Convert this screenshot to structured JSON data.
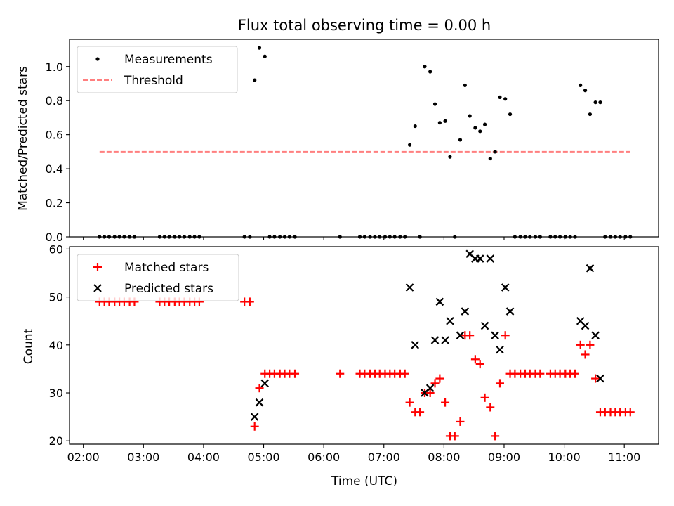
{
  "figure": {
    "title": "Flux total observing time = 0.00 h"
  },
  "chart_data": [
    {
      "type": "scatter",
      "xlabel": "",
      "ylabel": "Matched/Predicted stars",
      "xlim": [
        1.77,
        11.57
      ],
      "ylim": [
        0.0,
        1.16
      ],
      "yticks": [
        0.0,
        0.2,
        0.4,
        0.6,
        0.8,
        1.0
      ],
      "yticklabels": [
        "0.0",
        "0.2",
        "0.4",
        "0.6",
        "0.8",
        "1.0"
      ],
      "legend": {
        "placement": "top-left"
      },
      "series": [
        {
          "name": "Measurements",
          "marker": "dot",
          "color": "#000000",
          "points": [
            [
              2.27,
              0.0
            ],
            [
              2.35,
              0.0
            ],
            [
              2.43,
              0.0
            ],
            [
              2.52,
              0.0
            ],
            [
              2.6,
              0.0
            ],
            [
              2.68,
              0.0
            ],
            [
              2.77,
              0.0
            ],
            [
              2.85,
              0.0
            ],
            [
              3.27,
              0.0
            ],
            [
              3.35,
              0.0
            ],
            [
              3.43,
              0.0
            ],
            [
              3.52,
              0.0
            ],
            [
              3.6,
              0.0
            ],
            [
              3.68,
              0.0
            ],
            [
              3.77,
              0.0
            ],
            [
              3.85,
              0.0
            ],
            [
              3.93,
              0.0
            ],
            [
              4.68,
              0.0
            ],
            [
              4.77,
              0.0
            ],
            [
              4.85,
              0.92
            ],
            [
              4.93,
              1.11
            ],
            [
              5.02,
              1.06
            ],
            [
              5.1,
              0.0
            ],
            [
              5.18,
              0.0
            ],
            [
              5.27,
              0.0
            ],
            [
              5.35,
              0.0
            ],
            [
              5.43,
              0.0
            ],
            [
              5.52,
              0.0
            ],
            [
              6.27,
              0.0
            ],
            [
              6.6,
              0.0
            ],
            [
              6.68,
              0.0
            ],
            [
              6.77,
              0.0
            ],
            [
              6.85,
              0.0
            ],
            [
              6.93,
              0.0
            ],
            [
              7.02,
              0.0
            ],
            [
              7.1,
              0.0
            ],
            [
              7.18,
              0.0
            ],
            [
              7.27,
              0.0
            ],
            [
              7.35,
              0.0
            ],
            [
              7.43,
              0.54
            ],
            [
              7.52,
              0.65
            ],
            [
              7.6,
              0.0
            ],
            [
              7.68,
              1.0
            ],
            [
              7.77,
              0.97
            ],
            [
              7.85,
              0.78
            ],
            [
              7.93,
              0.67
            ],
            [
              8.02,
              0.68
            ],
            [
              8.1,
              0.47
            ],
            [
              8.18,
              0.0
            ],
            [
              8.27,
              0.57
            ],
            [
              8.35,
              0.89
            ],
            [
              8.43,
              0.71
            ],
            [
              8.52,
              0.64
            ],
            [
              8.6,
              0.62
            ],
            [
              8.68,
              0.66
            ],
            [
              8.77,
              0.46
            ],
            [
              8.85,
              0.5
            ],
            [
              8.93,
              0.82
            ],
            [
              9.02,
              0.81
            ],
            [
              9.1,
              0.72
            ],
            [
              9.18,
              0.0
            ],
            [
              9.27,
              0.0
            ],
            [
              9.35,
              0.0
            ],
            [
              9.43,
              0.0
            ],
            [
              9.52,
              0.0
            ],
            [
              9.6,
              0.0
            ],
            [
              9.77,
              0.0
            ],
            [
              9.85,
              0.0
            ],
            [
              9.93,
              0.0
            ],
            [
              10.02,
              0.0
            ],
            [
              10.1,
              0.0
            ],
            [
              10.18,
              0.0
            ],
            [
              10.27,
              0.89
            ],
            [
              10.35,
              0.86
            ],
            [
              10.43,
              0.72
            ],
            [
              10.52,
              0.79
            ],
            [
              10.6,
              0.79
            ],
            [
              10.68,
              0.0
            ],
            [
              10.77,
              0.0
            ],
            [
              10.85,
              0.0
            ],
            [
              10.93,
              0.0
            ],
            [
              11.02,
              0.0
            ],
            [
              11.1,
              0.0
            ]
          ]
        },
        {
          "name": "Threshold",
          "line": "dashed",
          "color": "#ff7f7f",
          "points": [
            [
              2.27,
              0.5
            ],
            [
              11.1,
              0.5
            ]
          ]
        }
      ]
    },
    {
      "type": "scatter",
      "xlabel": "Time (UTC)",
      "ylabel": "Count",
      "xlim": [
        1.77,
        11.57
      ],
      "ylim": [
        19.3,
        60.5
      ],
      "xticks": [
        2,
        3,
        4,
        5,
        6,
        7,
        8,
        9,
        10,
        11
      ],
      "xticklabels": [
        "02:00",
        "03:00",
        "04:00",
        "05:00",
        "06:00",
        "07:00",
        "08:00",
        "09:00",
        "10:00",
        "11:00"
      ],
      "yticks": [
        20,
        30,
        40,
        50,
        60
      ],
      "yticklabels": [
        "20",
        "30",
        "40",
        "50",
        "60"
      ],
      "legend": {
        "placement": "top-left"
      },
      "series": [
        {
          "name": "Matched stars",
          "marker": "plus",
          "color": "#ff0000",
          "points": [
            [
              2.27,
              49
            ],
            [
              2.35,
              49
            ],
            [
              2.43,
              49
            ],
            [
              2.52,
              49
            ],
            [
              2.6,
              49
            ],
            [
              2.68,
              49
            ],
            [
              2.77,
              49
            ],
            [
              2.85,
              49
            ],
            [
              3.27,
              49
            ],
            [
              3.35,
              49
            ],
            [
              3.43,
              49
            ],
            [
              3.52,
              49
            ],
            [
              3.6,
              49
            ],
            [
              3.68,
              49
            ],
            [
              3.77,
              49
            ],
            [
              3.85,
              49
            ],
            [
              3.93,
              49
            ],
            [
              4.68,
              49
            ],
            [
              4.77,
              49
            ],
            [
              4.85,
              23
            ],
            [
              4.93,
              31
            ],
            [
              5.02,
              34
            ],
            [
              5.1,
              34
            ],
            [
              5.18,
              34
            ],
            [
              5.27,
              34
            ],
            [
              5.35,
              34
            ],
            [
              5.43,
              34
            ],
            [
              5.52,
              34
            ],
            [
              6.27,
              34
            ],
            [
              6.6,
              34
            ],
            [
              6.68,
              34
            ],
            [
              6.77,
              34
            ],
            [
              6.85,
              34
            ],
            [
              6.93,
              34
            ],
            [
              7.02,
              34
            ],
            [
              7.1,
              34
            ],
            [
              7.18,
              34
            ],
            [
              7.27,
              34
            ],
            [
              7.35,
              34
            ],
            [
              7.43,
              28
            ],
            [
              7.52,
              26
            ],
            [
              7.6,
              26
            ],
            [
              7.68,
              30
            ],
            [
              7.77,
              30
            ],
            [
              7.85,
              32
            ],
            [
              7.93,
              33
            ],
            [
              8.02,
              28
            ],
            [
              8.1,
              21
            ],
            [
              8.18,
              21
            ],
            [
              8.27,
              24
            ],
            [
              8.35,
              42
            ],
            [
              8.43,
              42
            ],
            [
              8.52,
              37
            ],
            [
              8.6,
              36
            ],
            [
              8.68,
              29
            ],
            [
              8.77,
              27
            ],
            [
              8.85,
              21
            ],
            [
              8.93,
              32
            ],
            [
              9.02,
              42
            ],
            [
              9.1,
              34
            ],
            [
              9.18,
              34
            ],
            [
              9.27,
              34
            ],
            [
              9.35,
              34
            ],
            [
              9.43,
              34
            ],
            [
              9.52,
              34
            ],
            [
              9.6,
              34
            ],
            [
              9.77,
              34
            ],
            [
              9.85,
              34
            ],
            [
              9.93,
              34
            ],
            [
              10.02,
              34
            ],
            [
              10.1,
              34
            ],
            [
              10.18,
              34
            ],
            [
              10.27,
              40
            ],
            [
              10.35,
              38
            ],
            [
              10.43,
              40
            ],
            [
              10.52,
              33
            ],
            [
              10.6,
              26
            ],
            [
              10.68,
              26
            ],
            [
              10.77,
              26
            ],
            [
              10.85,
              26
            ],
            [
              10.93,
              26
            ],
            [
              11.02,
              26
            ],
            [
              11.1,
              26
            ]
          ]
        },
        {
          "name": "Predicted stars",
          "marker": "x",
          "color": "#000000",
          "points": [
            [
              4.85,
              25
            ],
            [
              4.93,
              28
            ],
            [
              5.02,
              32
            ],
            [
              7.43,
              52
            ],
            [
              7.52,
              40
            ],
            [
              7.68,
              30
            ],
            [
              7.77,
              31
            ],
            [
              7.85,
              41
            ],
            [
              7.93,
              49
            ],
            [
              8.02,
              41
            ],
            [
              8.1,
              45
            ],
            [
              8.27,
              42
            ],
            [
              8.35,
              47
            ],
            [
              8.43,
              59
            ],
            [
              8.52,
              58
            ],
            [
              8.6,
              58
            ],
            [
              8.68,
              44
            ],
            [
              8.77,
              58
            ],
            [
              8.85,
              42
            ],
            [
              8.93,
              39
            ],
            [
              9.02,
              52
            ],
            [
              9.1,
              47
            ],
            [
              10.27,
              45
            ],
            [
              10.35,
              44
            ],
            [
              10.43,
              56
            ],
            [
              10.52,
              42
            ],
            [
              10.6,
              33
            ]
          ]
        }
      ]
    }
  ]
}
